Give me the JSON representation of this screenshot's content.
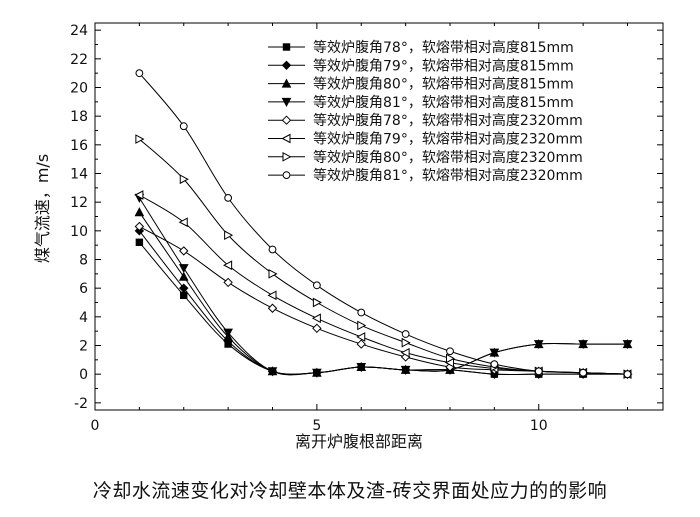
{
  "caption": "冷却水流速变化对冷却壁本体及渣-砖交界面处应力的的影响",
  "chart_data": {
    "type": "line",
    "xlabel": "离开炉腹根部距离",
    "ylabel": "煤气流速，m/s",
    "xlim": [
      0,
      12.8
    ],
    "ylim": [
      -2.5,
      24.5
    ],
    "xticks": [
      0,
      5,
      10
    ],
    "yticks": [
      -2,
      0,
      2,
      4,
      6,
      8,
      10,
      12,
      14,
      16,
      18,
      20,
      22,
      24
    ],
    "legend_position": "top-right",
    "grid": false,
    "x": [
      1,
      2,
      3,
      4,
      5,
      6,
      7,
      8,
      9,
      10,
      11,
      12
    ],
    "series": [
      {
        "name": "等效炉腹角78°，软熔带相对高度815mm",
        "marker": "square",
        "values": [
          9.2,
          5.5,
          2.1,
          0.2,
          0.1,
          0.5,
          0.3,
          0.3,
          0.0,
          0.0,
          0.0,
          0.0
        ]
      },
      {
        "name": "等效炉腹角79°，软熔带相对高度815mm",
        "marker": "diamond",
        "values": [
          10.0,
          6.0,
          2.3,
          0.2,
          0.1,
          0.5,
          0.3,
          0.3,
          0.0,
          0.0,
          0.0,
          0.0
        ]
      },
      {
        "name": "等效炉腹角80°，软熔带相对高度815mm",
        "marker": "triangle-up",
        "values": [
          11.3,
          6.8,
          2.6,
          0.2,
          0.1,
          0.5,
          0.3,
          0.3,
          1.5,
          2.1,
          2.1,
          2.1
        ]
      },
      {
        "name": "等效炉腹角81°，软熔带相对高度815mm",
        "marker": "triangle-down",
        "values": [
          12.3,
          7.4,
          2.9,
          0.2,
          0.1,
          0.5,
          0.3,
          0.3,
          1.5,
          2.1,
          2.1,
          2.1
        ]
      },
      {
        "name": "等效炉腹角78°，软熔带相对高度2320mm",
        "marker": "diamond-open",
        "values": [
          10.3,
          8.6,
          6.4,
          4.6,
          3.2,
          2.1,
          1.2,
          0.5,
          0.3,
          0.2,
          0.1,
          0.0
        ]
      },
      {
        "name": "等效炉腹角79°，软熔带相对高度2320mm",
        "marker": "triangle-left-open",
        "values": [
          12.5,
          10.6,
          7.6,
          5.5,
          3.9,
          2.6,
          1.5,
          0.8,
          0.4,
          0.2,
          0.1,
          0.0
        ]
      },
      {
        "name": "等效炉腹角80°，软熔带相对高度2320mm",
        "marker": "triangle-right-open",
        "values": [
          16.4,
          13.6,
          9.7,
          7.0,
          5.0,
          3.4,
          2.2,
          1.1,
          0.5,
          0.2,
          0.1,
          0.0
        ]
      },
      {
        "name": "等效炉腹角81°，软熔带相对高度2320mm",
        "marker": "circle-open",
        "values": [
          21.0,
          17.3,
          12.3,
          8.7,
          6.2,
          4.3,
          2.8,
          1.6,
          0.7,
          0.2,
          0.1,
          0.0
        ]
      }
    ]
  }
}
